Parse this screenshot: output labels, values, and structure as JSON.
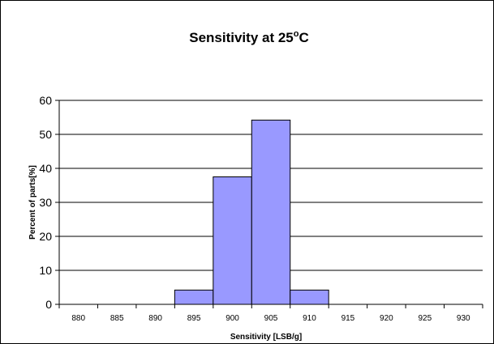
{
  "chart_data": {
    "type": "bar",
    "title": "Sensitivity at 25",
    "title_superscript": "o",
    "title_suffix": "C",
    "xlabel": "Sensitivity  [LSB/g]",
    "ylabel": "Percent of parts[%]",
    "categories": [
      "880",
      "885",
      "890",
      "895",
      "900",
      "905",
      "910",
      "915",
      "920",
      "925",
      "930"
    ],
    "values": [
      0,
      0,
      0,
      4.2,
      37.5,
      54.2,
      4.2,
      0,
      0,
      0,
      0
    ],
    "ylim": [
      0,
      60
    ],
    "yticks": [
      "0",
      "10",
      "20",
      "30",
      "40",
      "50",
      "60"
    ],
    "grid": "horizontal",
    "legend": "none",
    "bar_color": "#9999ff",
    "bar_edge_color": "#000000"
  }
}
